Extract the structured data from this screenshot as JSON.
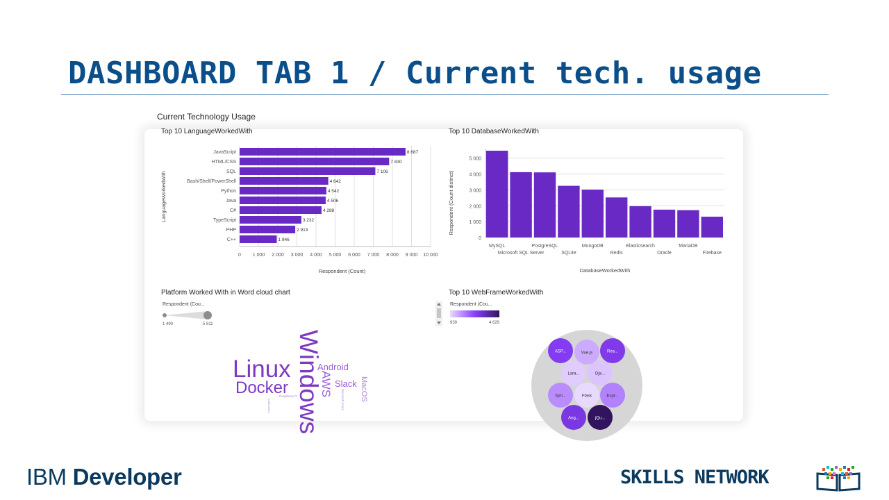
{
  "slide": {
    "title": "DASHBOARD TAB 1 / Current tech. usage",
    "footer_left_light": "IBM ",
    "footer_left_bold": "Developer",
    "footer_right": "SKILLS NETWORK"
  },
  "dashboard": {
    "title": "Current Technology Usage"
  },
  "chart_data": [
    {
      "type": "bar",
      "orientation": "horizontal",
      "title": "Top 10 LanguageWorkedWith",
      "xlabel": "Respondent (Count)",
      "ylabel": "LanguageWorkedWith",
      "xlim": [
        0,
        10000
      ],
      "xticks": [
        "0",
        "1 000",
        "2 000",
        "3 000",
        "4 000",
        "5 000",
        "6 000",
        "7 000",
        "8 000",
        "9 000",
        "10 000"
      ],
      "categories": [
        "JavaScript",
        "HTML/CSS",
        "SQL",
        "Bash/Shell/PowerShell",
        "Python",
        "Java",
        "C#",
        "TypeScript",
        "PHP",
        "C++"
      ],
      "values": [
        8687,
        7830,
        7106,
        4642,
        4542,
        4506,
        4288,
        3232,
        2913,
        1946
      ],
      "value_labels": [
        "8 687",
        "7 830",
        "7 106",
        "4 642",
        "4 542",
        "4 506",
        "4 288",
        "3 232",
        "2 913",
        "1 946"
      ],
      "color": "#6929c4",
      "grid": true
    },
    {
      "type": "bar",
      "title": "Top 10 DatabaseWorkedWith",
      "xlabel": "DatabaseWorkedWith",
      "ylabel": "Respondent (Count distinct)",
      "ylim": [
        0,
        5600
      ],
      "yticks": [
        "0",
        "1 000",
        "2 000",
        "3 000",
        "4 000",
        "5 000"
      ],
      "categories": [
        "MySQL",
        "Microsoft SQL Server",
        "PostgreSQL",
        "SQLite",
        "MongoDB",
        "Redis",
        "Elasticsearch",
        "Oracle",
        "MariaDB",
        "Firebase"
      ],
      "values": [
        5469,
        4116,
        4103,
        3256,
        3016,
        2524,
        1971,
        1755,
        1724,
        1310
      ],
      "color": "#6929c4",
      "grid": true
    },
    {
      "type": "wordcloud",
      "title": "Platform Worked With in Word cloud chart",
      "legend": {
        "title": "Respondent (Cou...",
        "min": "1 490",
        "max": "5 811"
      },
      "words": [
        {
          "text": "Windows",
          "value": 5811
        },
        {
          "text": "Linux",
          "value": 5200
        },
        {
          "text": "Docker",
          "value": 3800
        },
        {
          "text": "AWS",
          "value": 2800
        },
        {
          "text": "Android",
          "value": 2600
        },
        {
          "text": "Slack",
          "value": 2500
        },
        {
          "text": "MacOS",
          "value": 2300
        },
        {
          "text": "Microsoft Azure",
          "value": 1600
        },
        {
          "text": "Raspberry Pi",
          "value": 1550
        },
        {
          "text": "Kubernetes",
          "value": 1490
        }
      ]
    },
    {
      "type": "bubble",
      "title": "Top 10 WebFrameWorkedWith",
      "legend": {
        "title": "Respondent (Cou...",
        "min": "939",
        "max": "4 629"
      },
      "bubbles": [
        {
          "label": "ASP...",
          "value": 2900
        },
        {
          "label": "Vue.js",
          "value": 1500
        },
        {
          "label": "Rea...",
          "value": 3000
        },
        {
          "label": "Lara...",
          "value": 1100
        },
        {
          "label": "Dja...",
          "value": 1200
        },
        {
          "label": "Spri...",
          "value": 1850
        },
        {
          "label": "Flask",
          "value": 939
        },
        {
          "label": "Expr...",
          "value": 2000
        },
        {
          "label": "Ang...",
          "value": 3100
        },
        {
          "label": "jQu...",
          "value": 4629
        }
      ]
    }
  ]
}
